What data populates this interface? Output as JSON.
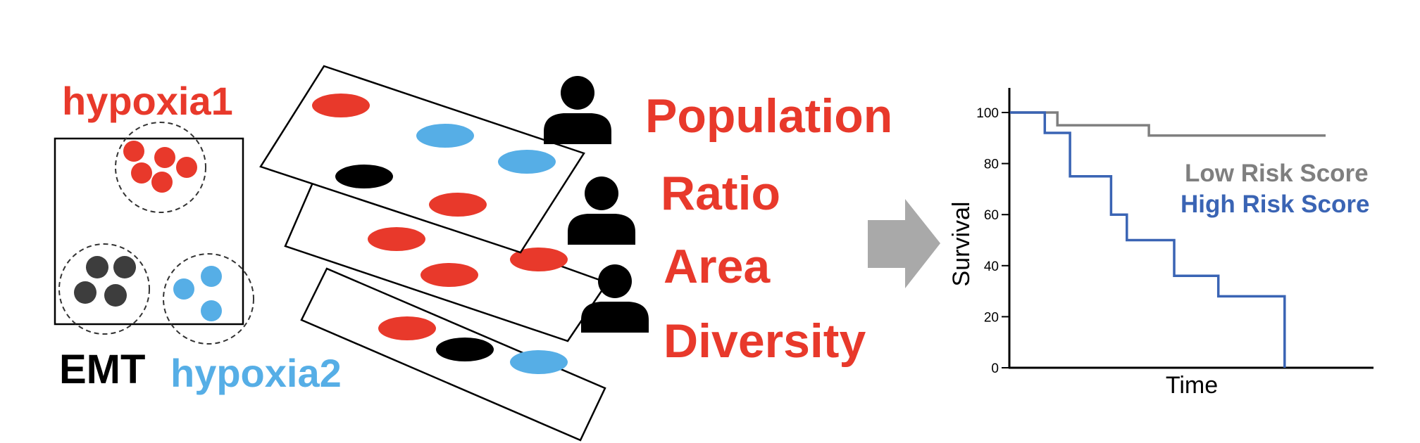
{
  "colors": {
    "red": "#e8392b",
    "blue": "#56aee6",
    "dark": "#3d3d3d",
    "black": "#000000",
    "gray_line": "#7f7f7f",
    "blue_line": "#3a64b4",
    "arrow": "#a9a9a9"
  },
  "clusters": {
    "hypoxia1_label": "hypoxia1",
    "emt_label": "EMT",
    "hypoxia2_label": "hypoxia2"
  },
  "layer_icons": [
    "person-icon",
    "person-icon",
    "person-icon"
  ],
  "features": [
    "Population",
    "Ratio",
    "Area",
    "Diversity"
  ],
  "arrow_icon": "right-arrow-icon",
  "chart_data": {
    "type": "line",
    "xlabel": "Time",
    "ylabel": "Survival",
    "ylim": [
      0,
      100
    ],
    "yticks": [
      0,
      20,
      40,
      60,
      80,
      100
    ],
    "grid": false,
    "legend_placement": "right",
    "series": [
      {
        "name": "Low Risk Score",
        "color": "#7f7f7f",
        "step_points": [
          [
            0,
            100
          ],
          [
            15,
            100
          ],
          [
            15,
            95
          ],
          [
            44,
            95
          ],
          [
            44,
            91
          ],
          [
            100,
            91
          ]
        ]
      },
      {
        "name": "High Risk Score",
        "color": "#3a64b4",
        "step_points": [
          [
            0,
            100
          ],
          [
            11,
            100
          ],
          [
            11,
            92
          ],
          [
            19,
            92
          ],
          [
            19,
            75
          ],
          [
            32,
            75
          ],
          [
            32,
            60
          ],
          [
            37,
            60
          ],
          [
            37,
            50
          ],
          [
            52,
            50
          ],
          [
            52,
            36
          ],
          [
            66,
            36
          ],
          [
            66,
            28
          ],
          [
            87,
            28
          ],
          [
            87,
            0
          ]
        ]
      }
    ]
  }
}
